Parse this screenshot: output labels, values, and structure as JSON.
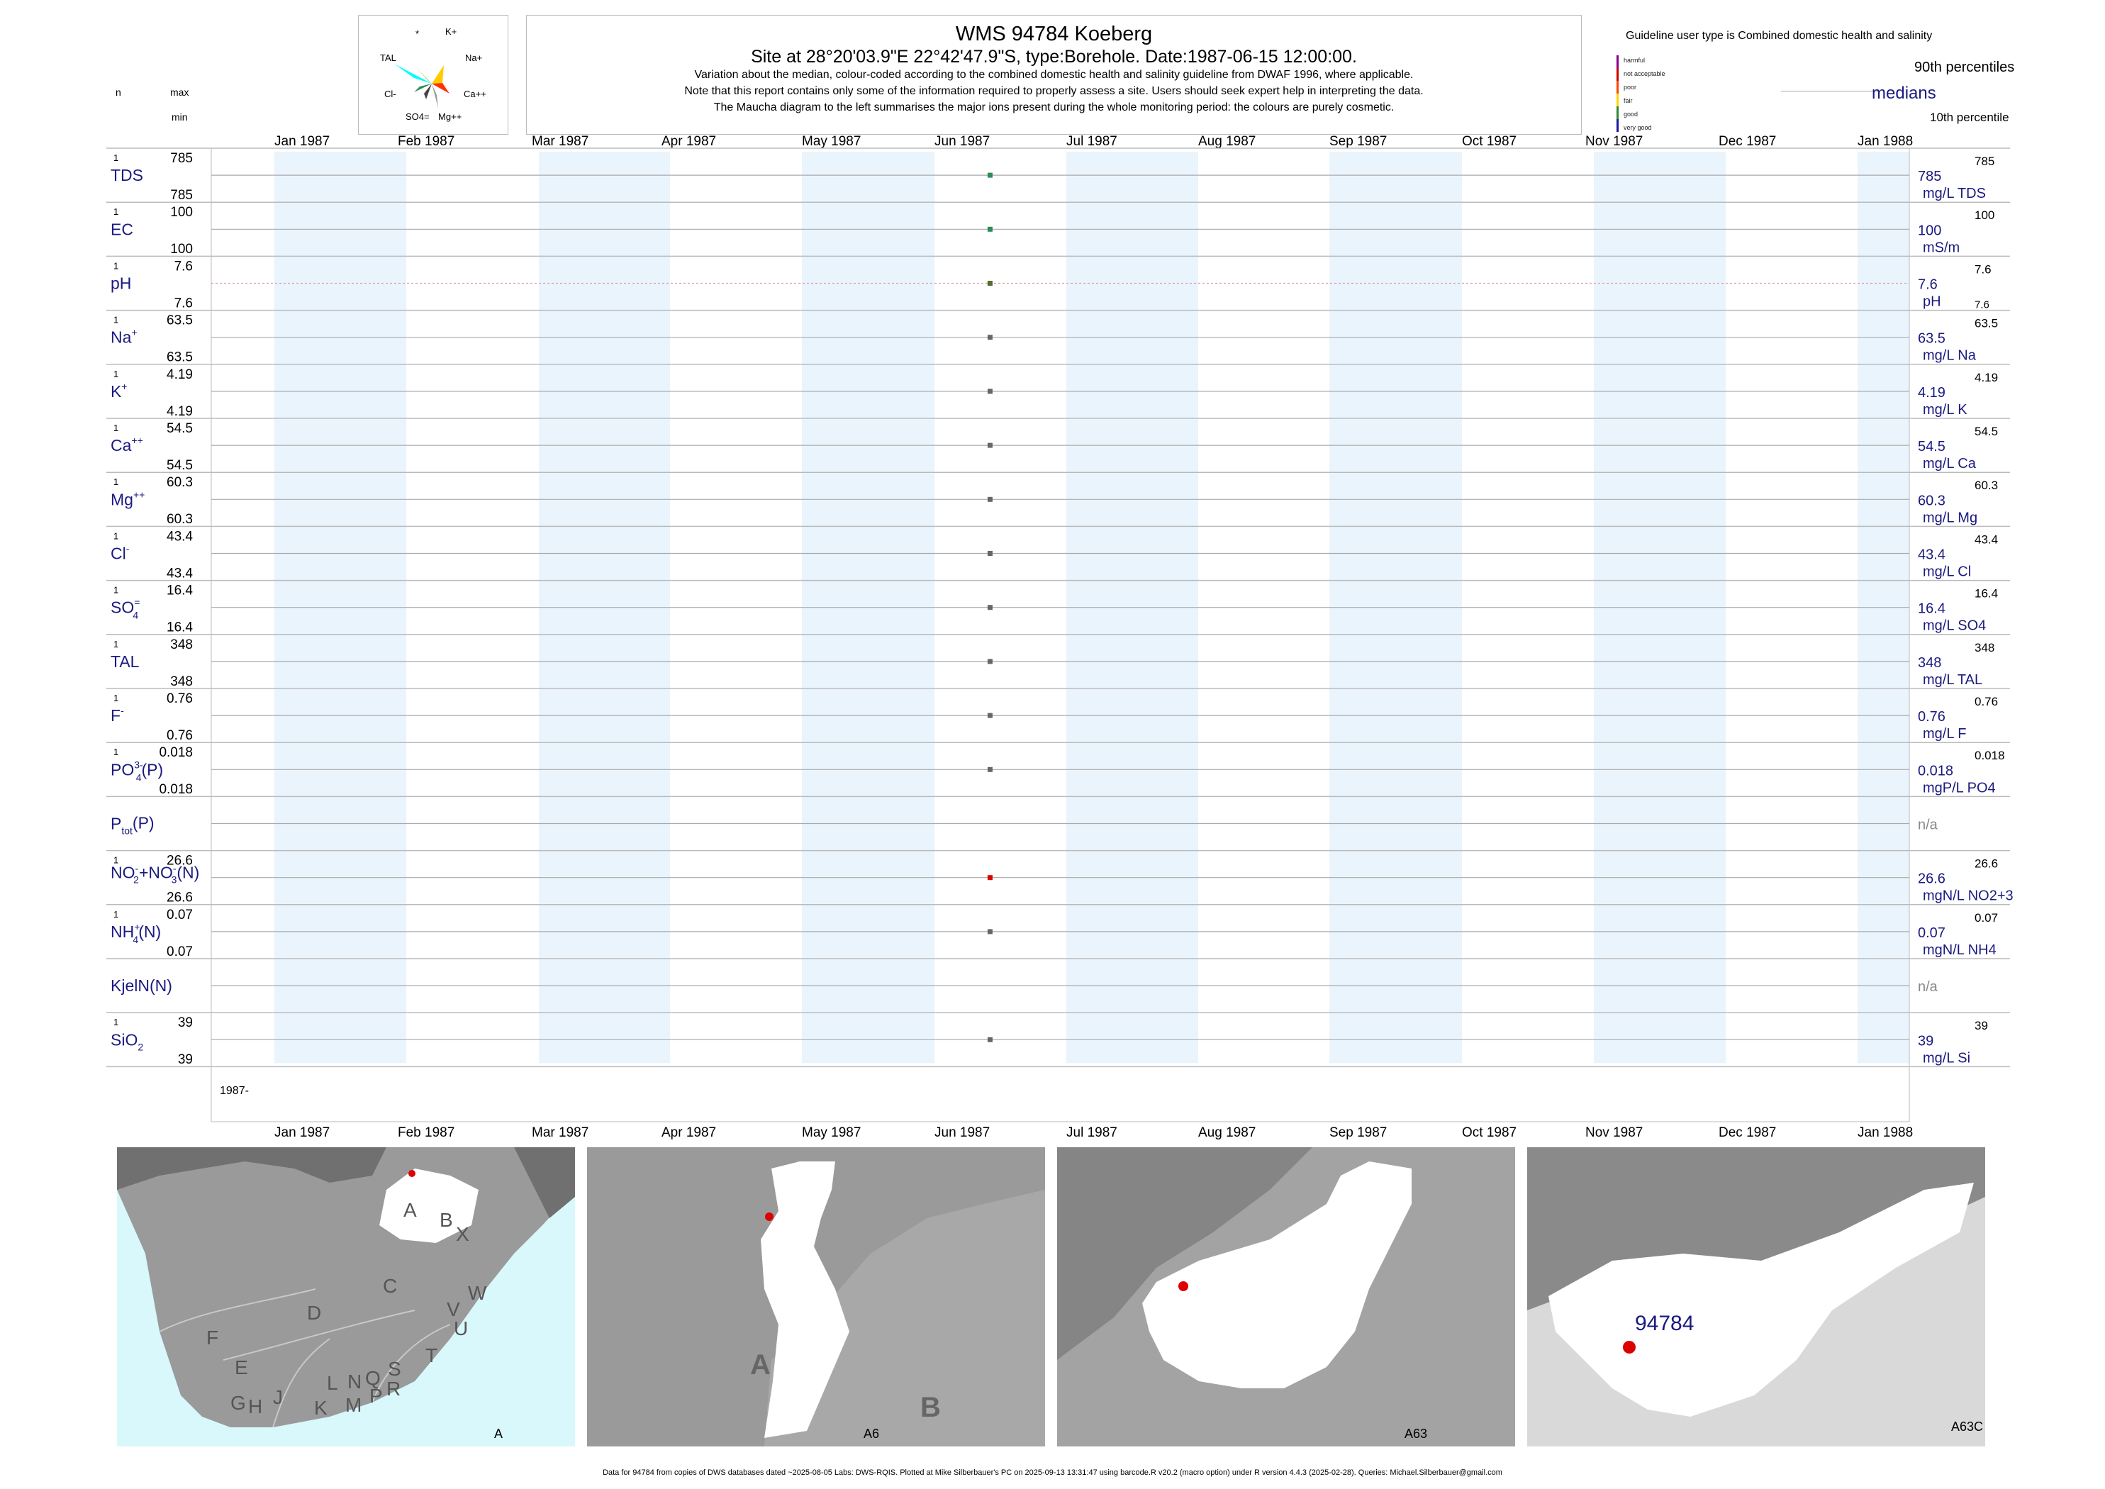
{
  "header": {
    "title": "WMS 94784  Koeberg",
    "site_line": "Site at 28°20'03.9\"E 22°42'47.9\"S, type:Borehole. Date:1987-06-15 12:00:00.",
    "note1": "Variation about the median,  colour-coded according to the combined domestic health and salinity guideline from DWAF 1996, where applicable.",
    "note2": "Note that this report contains only some of the information required to properly assess a site. Users should seek expert help in interpreting the data.",
    "note3": "The Maucha diagram to the left summarises the major ions present during the whole monitoring period: the colours are purely cosmetic."
  },
  "maucha": {
    "labels": [
      "*",
      "K+",
      "TAL",
      "Na+",
      "Cl-",
      "Ca++",
      "SO4=",
      "Mg++"
    ]
  },
  "left_header": {
    "n": "n",
    "max": "max",
    "min": "min"
  },
  "legend": {
    "title": "Guideline user type is Combined domestic health and salinity",
    "classes": [
      {
        "label": "harmful",
        "color": "#8b008b"
      },
      {
        "label": "not acceptable",
        "color": "#cc0000"
      },
      {
        "label": "poor",
        "color": "#ff4400"
      },
      {
        "label": "fair",
        "color": "#ffd700"
      },
      {
        "label": "good",
        "color": "#2e8b2e"
      },
      {
        "label": "very good",
        "color": "#1a1aa0"
      }
    ],
    "p90": "90th percentiles",
    "median": "medians",
    "p10": "10th percentile"
  },
  "chart_data": {
    "type": "scatter",
    "x_axis_months": [
      "Jan 1987",
      "Feb 1987",
      "Mar 1987",
      "Apr 1987",
      "May 1987",
      "Jun 1987",
      "Jul 1987",
      "Aug 1987",
      "Sep 1987",
      "Oct 1987",
      "Nov 1987",
      "Dec 1987",
      "Jan 1988"
    ],
    "x_range": [
      "1987-01-01",
      "1988-01-01"
    ],
    "year_label": "1987-",
    "sample_date": "1987-06-15",
    "series": [
      {
        "name": "TDS",
        "sup": "",
        "sub": "",
        "suffix": "",
        "n": "1",
        "max": "785",
        "min": "785",
        "value": 785,
        "unit": "mg/L TDS",
        "p90": "785",
        "color": "#2e8b57"
      },
      {
        "name": "EC",
        "sup": "",
        "sub": "",
        "suffix": "",
        "n": "1",
        "max": "100",
        "min": "100",
        "value": 100,
        "unit": "mS/m",
        "p90": "100",
        "color": "#2e8b57"
      },
      {
        "name": "pH",
        "sup": "",
        "sub": "",
        "suffix": "",
        "n": "1",
        "max": "7.6",
        "min": "7.6",
        "value": 7.6,
        "unit": "pH",
        "p90": "7.6",
        "p10": "7.6",
        "color": "#556b2f"
      },
      {
        "name": "Na",
        "sup": "+",
        "sub": "",
        "suffix": "",
        "n": "1",
        "max": "63.5",
        "min": "63.5",
        "value": 63.5,
        "unit": "mg/L Na",
        "p90": "63.5",
        "color": "#666666"
      },
      {
        "name": "K",
        "sup": "+",
        "sub": "",
        "suffix": "",
        "n": "1",
        "max": "4.19",
        "min": "4.19",
        "value": 4.19,
        "unit": "mg/L K",
        "p90": "4.19",
        "color": "#666666"
      },
      {
        "name": "Ca",
        "sup": "++",
        "sub": "",
        "suffix": "",
        "n": "1",
        "max": "54.5",
        "min": "54.5",
        "value": 54.5,
        "unit": "mg/L Ca",
        "p90": "54.5",
        "color": "#666666"
      },
      {
        "name": "Mg",
        "sup": "++",
        "sub": "",
        "suffix": "",
        "n": "1",
        "max": "60.3",
        "min": "60.3",
        "value": 60.3,
        "unit": "mg/L Mg",
        "p90": "60.3",
        "color": "#666666"
      },
      {
        "name": "Cl",
        "sup": "-",
        "sub": "",
        "suffix": "",
        "n": "1",
        "max": "43.4",
        "min": "43.4",
        "value": 43.4,
        "unit": "mg/L Cl",
        "p90": "43.4",
        "color": "#666666"
      },
      {
        "name": "SO",
        "sup": "=",
        "sub": "4",
        "suffix": "",
        "n": "1",
        "max": "16.4",
        "min": "16.4",
        "value": 16.4,
        "unit": "mg/L SO4",
        "p90": "16.4",
        "color": "#666666"
      },
      {
        "name": "TAL",
        "sup": "",
        "sub": "",
        "suffix": "",
        "n": "1",
        "max": "348",
        "min": "348",
        "value": 348,
        "unit": "mg/L TAL",
        "p90": "348",
        "color": "#666666"
      },
      {
        "name": "F",
        "sup": "-",
        "sub": "",
        "suffix": "",
        "n": "1",
        "max": "0.76",
        "min": "0.76",
        "value": 0.76,
        "unit": "mg/L F",
        "p90": "0.76",
        "color": "#666666"
      },
      {
        "name": "PO",
        "sup": "3-",
        "sub": "4",
        "suffix": "(P)",
        "n": "1",
        "max": "0.018",
        "min": "0.018",
        "value": 0.018,
        "unit": "mgP/L PO4",
        "p90": "0.018",
        "color": "#666666"
      },
      {
        "name": "P",
        "sup": "",
        "sub": "tot",
        "suffix": "(P)",
        "n": "",
        "max": "",
        "min": "",
        "value": null,
        "unit": "n/a",
        "p90": "",
        "color": "#666666"
      },
      {
        "name": "NO2+NO3(N)",
        "sup": "",
        "sub": "",
        "suffix": "",
        "n": "1",
        "max": "26.6",
        "min": "26.6",
        "value": 26.6,
        "unit": "mgN/L NO2+3",
        "p90": "26.6",
        "color": "#dd0000"
      },
      {
        "name": "NH",
        "sup": "+",
        "sub": "4",
        "suffix": "(N)",
        "n": "1",
        "max": "0.07",
        "min": "0.07",
        "value": 0.07,
        "unit": "mgN/L NH4",
        "p90": "0.07",
        "color": "#666666"
      },
      {
        "name": "KjelN(N)",
        "sup": "",
        "sub": "",
        "suffix": "",
        "n": "",
        "max": "",
        "min": "",
        "value": null,
        "unit": "n/a",
        "p90": "",
        "color": "#666666"
      },
      {
        "name": "SiO",
        "sup": "",
        "sub": "2",
        "suffix": "",
        "n": "1",
        "max": "39",
        "min": "39",
        "value": 39,
        "unit": "mg/L Si",
        "p90": "39",
        "color": "#666666"
      }
    ]
  },
  "maps": [
    {
      "label": "A",
      "letters": [
        "A",
        "B",
        "X",
        "C",
        "W",
        "D",
        "V",
        "U",
        "F",
        "E",
        "T",
        "G",
        "H",
        "J",
        "K",
        "L",
        "M",
        "N",
        "P",
        "Q",
        "R",
        "S"
      ]
    },
    {
      "label": "A6",
      "letters": [
        "A",
        "B"
      ]
    },
    {
      "label": "A63",
      "letters": []
    },
    {
      "label": "A63C",
      "site": "94784"
    }
  ],
  "footer": "Data for 94784 from copies of DWS databases dated ~2025-08-05 Labs: DWS-RQIS. Plotted at Mike Silberbauer's PC on 2025-09-13 13:31:47 using barcode.R v20.2 (macro option) under R version 4.4.3 (2025-02-28). Queries: Michael.Silberbauer@gmail.com"
}
